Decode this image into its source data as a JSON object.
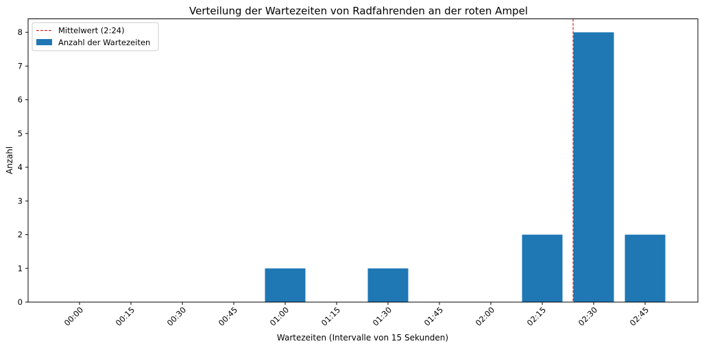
{
  "chart_data": {
    "type": "bar",
    "title": "Verteilung der Wartezeiten von Radfahrenden an der roten Ampel",
    "xlabel": "Wartezeiten (Intervalle von 15 Sekunden)",
    "ylabel": "Anzahl",
    "categories": [
      "00:00",
      "00:15",
      "00:30",
      "00:45",
      "01:00",
      "01:15",
      "01:30",
      "01:45",
      "02:00",
      "02:15",
      "02:30",
      "02:45"
    ],
    "series": [
      {
        "name": "Anzahl der Wartezeiten",
        "values": [
          0,
          0,
          0,
          0,
          1,
          0,
          1,
          0,
          0,
          2,
          8,
          2
        ]
      }
    ],
    "mean_line": {
      "label": "Mittelwert (2:24)",
      "x_seconds": 144
    },
    "y_ticks": [
      0,
      1,
      2,
      3,
      4,
      5,
      6,
      7,
      8
    ],
    "ylim": [
      0,
      8.4
    ],
    "legend_position": "top-left",
    "grid": false,
    "colors": {
      "bar": "#1f77b4",
      "mean_line": "#d62728",
      "axis": "#000000"
    }
  }
}
